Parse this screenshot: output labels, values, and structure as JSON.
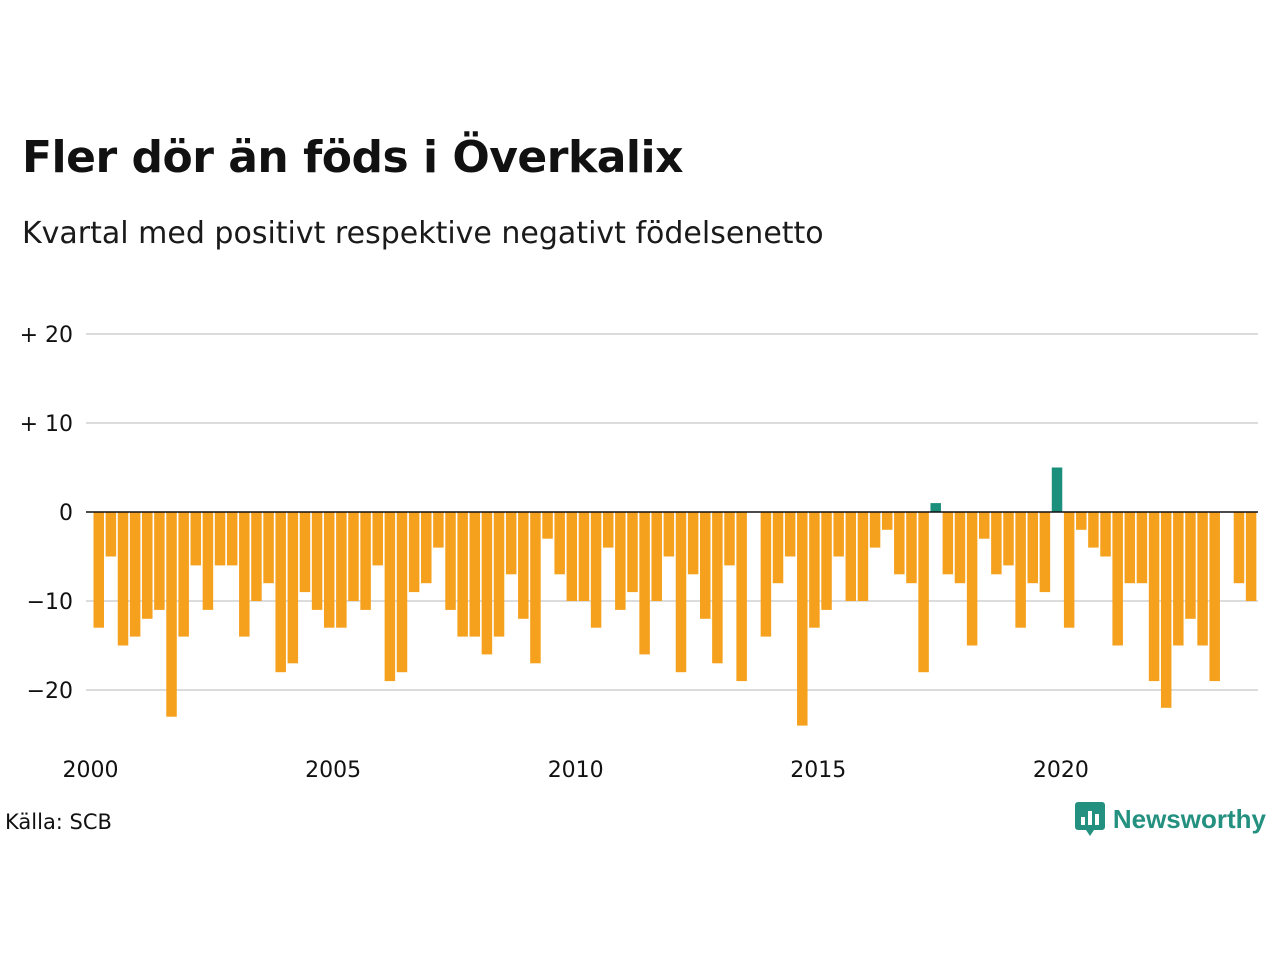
{
  "header": {
    "title": "Fler dör än föds i Överkalix",
    "subtitle": "Kvartal med positivt respektive negativt födelsenetto"
  },
  "footer": {
    "source": "Källa: SCB",
    "brand": "Newsworthy"
  },
  "colors": {
    "negative": "#f5a11d",
    "positive": "#1a8f7c",
    "grid": "#dcdcdc",
    "zero_line": "#111111",
    "brand": "#24907f"
  },
  "chart_data": {
    "type": "bar",
    "y_ticks": [
      {
        "value": 20,
        "label": "+ 20"
      },
      {
        "value": 10,
        "label": "+ 10"
      },
      {
        "value": 0,
        "label": "0"
      },
      {
        "value": -10,
        "label": "−10"
      },
      {
        "value": -20,
        "label": "−20"
      }
    ],
    "x_ticks": [
      {
        "year": 2000,
        "label": "2000"
      },
      {
        "year": 2005,
        "label": "2005"
      },
      {
        "year": 2010,
        "label": "2010"
      },
      {
        "year": 2015,
        "label": "2015"
      },
      {
        "year": 2020,
        "label": "2020"
      }
    ],
    "ylim": [
      -26,
      20
    ],
    "x_start_year": 2000,
    "grid": true,
    "values": [
      -13,
      -5,
      -15,
      -14,
      -12,
      -11,
      -23,
      -14,
      -6,
      -11,
      -6,
      -6,
      -14,
      -10,
      -8,
      -18,
      -17,
      -9,
      -11,
      -13,
      -13,
      -10,
      -11,
      -6,
      -19,
      -18,
      -9,
      -8,
      -4,
      -11,
      -14,
      -14,
      -16,
      -14,
      -7,
      -12,
      -17,
      -3,
      -7,
      -10,
      -10,
      -13,
      -4,
      -11,
      -9,
      -16,
      -10,
      -5,
      -18,
      -7,
      -12,
      -17,
      -6,
      -19,
      0,
      -14,
      -8,
      -5,
      -24,
      -13,
      -11,
      -5,
      -10,
      -10,
      -4,
      -2,
      -7,
      -8,
      -18,
      1,
      -7,
      -8,
      -15,
      -3,
      -7,
      -6,
      -13,
      -8,
      -9,
      5,
      -13,
      -2,
      -4,
      -5,
      -15,
      -8,
      -8,
      -19,
      -22,
      -15,
      -12,
      -15,
      -19,
      0,
      -8,
      -10
    ]
  }
}
